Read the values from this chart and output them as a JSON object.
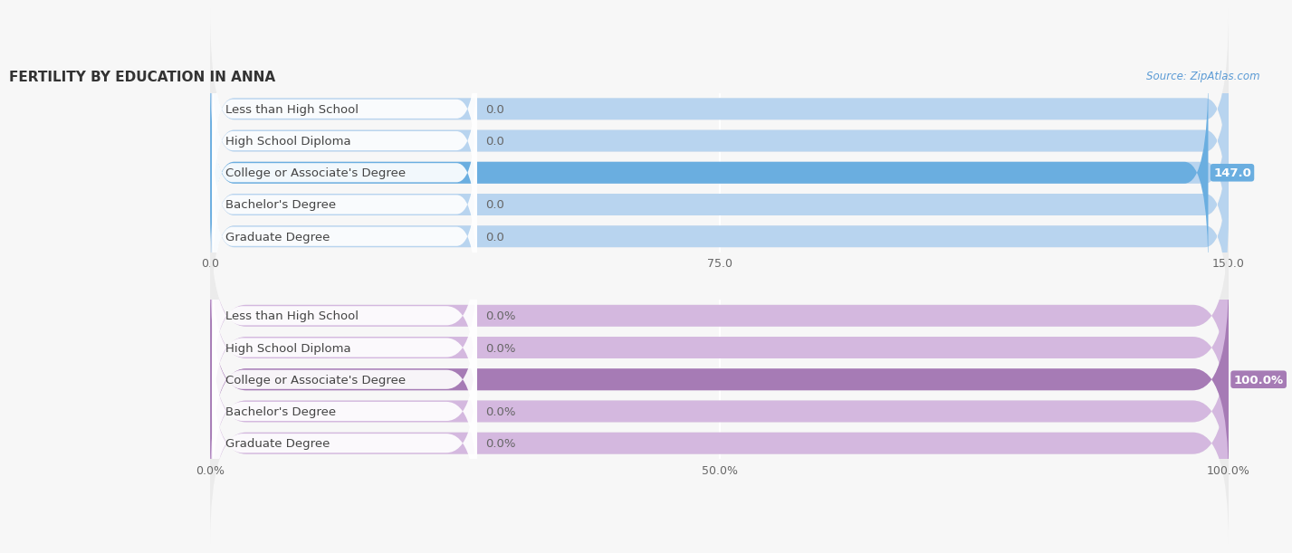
{
  "title": "FERTILITY BY EDUCATION IN ANNA",
  "source": "Source: ZipAtlas.com",
  "top_chart": {
    "categories": [
      "Less than High School",
      "High School Diploma",
      "College or Associate's Degree",
      "Bachelor's Degree",
      "Graduate Degree"
    ],
    "values": [
      0.0,
      0.0,
      147.0,
      0.0,
      0.0
    ],
    "bar_color_full": "#6aaee0",
    "bar_color_empty": "#b8d4ef",
    "row_bg_color": "#ebebeb",
    "xlim": [
      0,
      150.0
    ],
    "xticks": [
      0.0,
      75.0,
      150.0
    ],
    "xtick_labels": [
      "0.0",
      "75.0",
      "150.0"
    ]
  },
  "bottom_chart": {
    "categories": [
      "Less than High School",
      "High School Diploma",
      "College or Associate's Degree",
      "Bachelor's Degree",
      "Graduate Degree"
    ],
    "values": [
      0.0,
      0.0,
      100.0,
      0.0,
      0.0
    ],
    "bar_color_full": "#a67bb5",
    "bar_color_empty": "#d4b8df",
    "row_bg_color": "#ebebeb",
    "xlim": [
      0,
      100.0
    ],
    "xticks": [
      0.0,
      50.0,
      100.0
    ],
    "xtick_labels": [
      "0.0%",
      "50.0%",
      "100.0%"
    ]
  },
  "bg_color": "#f7f7f7",
  "label_font_size": 9.5,
  "value_font_size": 9.5,
  "title_font_size": 11,
  "bar_height": 0.68,
  "label_color": "#444444",
  "grid_color": "#ffffff",
  "source_color": "#5b9bd5"
}
